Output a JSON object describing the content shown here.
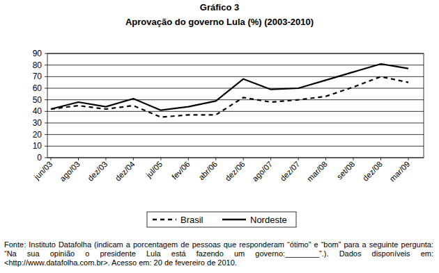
{
  "chart_data": {
    "type": "line",
    "title": "Gráfico 3",
    "subtitle": "Aprovação do governo Lula (%) (2003-2010)",
    "categories": [
      "jun/03",
      "ago/03",
      "dez/03",
      "dez/04",
      "jul/05",
      "fev/06",
      "abr/06",
      "dez/06",
      "ago/07",
      "dez/07",
      "mar/08",
      "set/08",
      "dez/08",
      "mar/09"
    ],
    "series": [
      {
        "name": "Brasil",
        "color": "#000000",
        "line_style": "dashed",
        "values": [
          42,
          45,
          42,
          45,
          35,
          37,
          37,
          52,
          48,
          50,
          53,
          61,
          70,
          65
        ]
      },
      {
        "name": "Nordeste",
        "color": "#000000",
        "line_style": "solid",
        "values": [
          42,
          48,
          44,
          51,
          41,
          44,
          49,
          68,
          59,
          60,
          67,
          74,
          81,
          77
        ]
      }
    ],
    "ylim": [
      0,
      90
    ],
    "yticks": [
      0,
      10,
      20,
      30,
      40,
      50,
      60,
      70,
      80,
      90
    ],
    "grid": true,
    "legend": "bottom",
    "note": "Fonte: Instituto Datafolha (indicam a porcentagem de pessoas que responderam “ótimo” e “bom” para a seguinte pergunta: “Na sua opinião o presidente Lula está fazendo um governo:________”.). Dados disponíveis em: <http://www.datafolha.com.br>. Acesso em: 20 de fevereiro de 2010."
  }
}
